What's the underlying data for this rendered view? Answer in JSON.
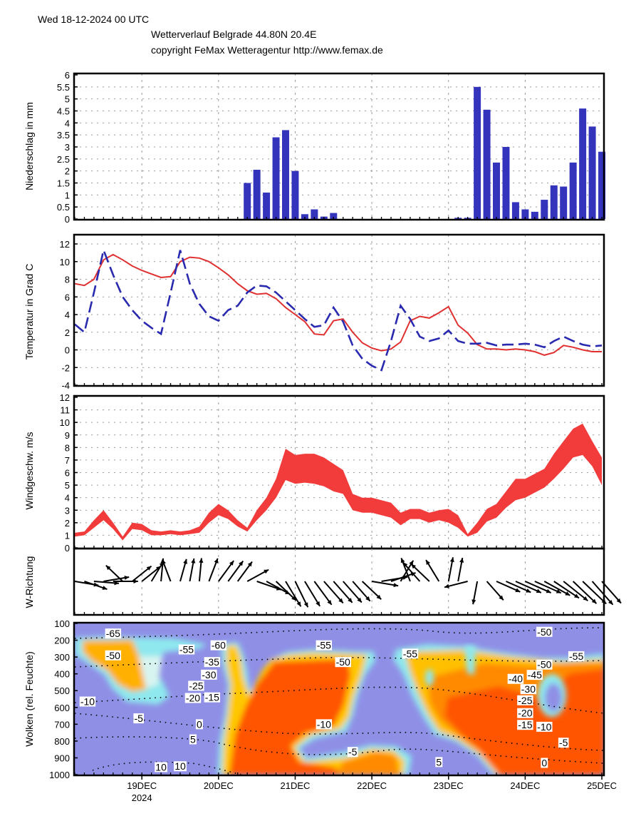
{
  "header": {
    "datetime": "Wed 18-12-2024 00 UTC",
    "title": "Wetterverlauf Belgrade  44.80N 20.4E",
    "copyright": "copyright FeMax Wetteragentur http://www.femax.de"
  },
  "x_axis": {
    "ticks": [
      {
        "time": "2024-12-19T00",
        "label": "19DEC"
      },
      {
        "time": "2024-12-20T00",
        "label": "20DEC"
      },
      {
        "time": "2024-12-21T00",
        "label": "21DEC"
      },
      {
        "time": "2024-12-22T00",
        "label": "22DEC"
      },
      {
        "time": "2024-12-23T00",
        "label": "23DEC"
      },
      {
        "time": "2024-12-24T00",
        "label": "24DEC"
      },
      {
        "time": "2024-12-25T00",
        "label": "25DEC"
      }
    ],
    "year_label": "2024",
    "range": [
      "2024-12-18T03",
      "2024-12-25T00"
    ]
  },
  "colors": {
    "precip_bar": "#3333bb",
    "temperature": "#e03030",
    "dewpoint_dashed": "#2a2ab0",
    "wind_band": "#f23c3c",
    "cloud_background": "#8f8fe6",
    "cloud_cyan": "#8ee8ee",
    "cloud_yellow": "#ffd21e",
    "cloud_orange": "#ff9a00",
    "cloud_red": "#ff5500"
  },
  "chart_data": [
    {
      "type": "bar",
      "ylabel": "Niederschlag in mm",
      "ylim": [
        0,
        6
      ],
      "yticks": [
        "0",
        "0.5",
        "1",
        "1.5",
        "2",
        "2.5",
        "3",
        "3.5",
        "4",
        "4.5",
        "5",
        "5.5",
        "6"
      ],
      "grid": true,
      "x": [
        "2024-12-20T09",
        "2024-12-20T12",
        "2024-12-20T15",
        "2024-12-20T18",
        "2024-12-20T21",
        "2024-12-21T00",
        "2024-12-21T03",
        "2024-12-21T06",
        "2024-12-21T09",
        "2024-12-21T12",
        "2024-12-23T03",
        "2024-12-23T06",
        "2024-12-23T09",
        "2024-12-23T12",
        "2024-12-23T15",
        "2024-12-23T18",
        "2024-12-23T21",
        "2024-12-24T00",
        "2024-12-24T03",
        "2024-12-24T06",
        "2024-12-24T09",
        "2024-12-24T12",
        "2024-12-24T15",
        "2024-12-24T18",
        "2024-12-24T21",
        "2024-12-25T00"
      ],
      "values": [
        1.5,
        2.05,
        1.1,
        3.4,
        3.7,
        2.0,
        0.2,
        0.4,
        0.1,
        0.25,
        0.05,
        0.05,
        5.5,
        4.55,
        2.35,
        3.0,
        0.7,
        0.4,
        0.3,
        0.8,
        1.4,
        1.35,
        2.35,
        4.6,
        3.85,
        2.8
      ]
    },
    {
      "type": "line",
      "ylabel": "Temperatur in Grad C",
      "ylim": [
        -4,
        12
      ],
      "yticks": [
        "-4",
        "-2",
        "0",
        "2",
        "4",
        "6",
        "8",
        "10",
        "12"
      ],
      "grid": true,
      "x": [
        "2024-12-18T03",
        "2024-12-18T06",
        "2024-12-18T09",
        "2024-12-18T12",
        "2024-12-18T15",
        "2024-12-18T18",
        "2024-12-18T21",
        "2024-12-19T00",
        "2024-12-19T03",
        "2024-12-19T06",
        "2024-12-19T09",
        "2024-12-19T12",
        "2024-12-19T15",
        "2024-12-19T18",
        "2024-12-19T21",
        "2024-12-20T00",
        "2024-12-20T03",
        "2024-12-20T06",
        "2024-12-20T09",
        "2024-12-20T12",
        "2024-12-20T15",
        "2024-12-20T18",
        "2024-12-20T21",
        "2024-12-21T00",
        "2024-12-21T03",
        "2024-12-21T06",
        "2024-12-21T09",
        "2024-12-21T12",
        "2024-12-21T15",
        "2024-12-21T18",
        "2024-12-21T21",
        "2024-12-22T00",
        "2024-12-22T03",
        "2024-12-22T06",
        "2024-12-22T09",
        "2024-12-22T12",
        "2024-12-22T15",
        "2024-12-22T18",
        "2024-12-22T21",
        "2024-12-23T00",
        "2024-12-23T03",
        "2024-12-23T06",
        "2024-12-23T09",
        "2024-12-23T12",
        "2024-12-23T15",
        "2024-12-23T18",
        "2024-12-23T21",
        "2024-12-24T00",
        "2024-12-24T03",
        "2024-12-24T06",
        "2024-12-24T09",
        "2024-12-24T12",
        "2024-12-24T15",
        "2024-12-24T18",
        "2024-12-24T21",
        "2024-12-25T00"
      ],
      "series": [
        {
          "style": "solid",
          "color": "#e03030",
          "values": [
            7.5,
            7.3,
            8.0,
            10.2,
            10.8,
            10.2,
            9.5,
            9.0,
            8.6,
            8.2,
            8.3,
            10.0,
            10.5,
            10.4,
            10.0,
            9.3,
            8.5,
            7.5,
            6.7,
            6.3,
            6.4,
            5.8,
            4.8,
            4.0,
            3.2,
            1.8,
            1.7,
            3.3,
            3.5,
            2.0,
            0.8,
            0.2,
            -0.1,
            0.1,
            0.9,
            3.3,
            3.8,
            3.6,
            4.2,
            4.9,
            2.8,
            1.9,
            0.6,
            0.1,
            0.1,
            0.0,
            0.1,
            0.0,
            -0.2,
            -0.6,
            -0.3,
            0.5,
            0.3,
            0.0,
            -0.2,
            -0.2
          ]
        },
        {
          "style": "dashed",
          "color": "#2a2ab0",
          "values": [
            2.9,
            2.0,
            6.5,
            11.3,
            8.5,
            6.0,
            4.5,
            3.3,
            2.5,
            1.8,
            6.5,
            11.3,
            7.5,
            5.2,
            3.8,
            3.3,
            4.5,
            5.0,
            6.5,
            7.3,
            7.2,
            6.5,
            5.5,
            4.5,
            3.5,
            2.6,
            2.8,
            4.8,
            3.2,
            0.5,
            -1.0,
            -1.8,
            -2.3,
            1.0,
            5.0,
            3.5,
            1.5,
            1.0,
            1.3,
            2.2,
            1.0,
            0.7,
            0.7,
            0.8,
            0.5,
            0.6,
            0.6,
            0.7,
            0.6,
            0.3,
            1.0,
            1.5,
            1.0,
            0.6,
            0.4,
            0.5
          ]
        }
      ]
    },
    {
      "type": "area",
      "ylabel": "Windgeschw. m/s",
      "ylim": [
        0,
        12
      ],
      "yticks": [
        "0",
        "1",
        "2",
        "3",
        "4",
        "5",
        "6",
        "7",
        "8",
        "9",
        "10",
        "11",
        "12"
      ],
      "grid": true,
      "band_upper": [
        1.2,
        1.3,
        2.2,
        3.0,
        2.0,
        0.9,
        2.0,
        1.9,
        1.4,
        1.3,
        1.4,
        1.3,
        1.4,
        1.7,
        2.8,
        3.5,
        3.0,
        2.2,
        1.6,
        3.0,
        4.0,
        5.5,
        7.9,
        7.4,
        7.5,
        7.5,
        7.2,
        6.7,
        6.2,
        4.3,
        4.0,
        4.0,
        3.8,
        3.6,
        2.8,
        3.1,
        3.1,
        2.8,
        3.0,
        3.1,
        2.6,
        1.1,
        2.0,
        3.1,
        3.5,
        4.5,
        5.5,
        5.5,
        5.9,
        6.3,
        7.5,
        8.5,
        9.5,
        9.9,
        8.5,
        7.2
      ],
      "band_lower": [
        0.9,
        1.0,
        1.6,
        2.2,
        1.5,
        0.6,
        1.5,
        1.4,
        1.0,
        1.0,
        1.1,
        1.0,
        1.1,
        1.2,
        2.0,
        2.6,
        2.3,
        1.7,
        1.3,
        2.2,
        3.0,
        4.0,
        5.4,
        5.1,
        5.2,
        5.1,
        4.9,
        4.5,
        4.3,
        3.0,
        2.8,
        2.8,
        2.6,
        2.4,
        1.8,
        2.3,
        2.3,
        2.0,
        2.2,
        2.0,
        1.6,
        0.9,
        1.2,
        2.1,
        2.4,
        3.2,
        3.8,
        4.0,
        4.4,
        4.8,
        5.5,
        6.3,
        7.2,
        7.4,
        6.5,
        5.0
      ]
    },
    {
      "type": "scatter",
      "ylabel": "W-Richtung",
      "wind_from_deg": [
        280,
        290,
        275,
        260,
        270,
        135,
        230,
        230,
        210,
        185,
        160,
        195,
        190,
        185,
        200,
        215,
        215,
        215,
        240,
        290,
        300,
        315,
        330,
        335,
        330,
        325,
        320,
        320,
        320,
        320,
        315,
        280,
        260,
        250,
        210,
        160,
        140,
        135,
        150,
        190,
        190,
        75,
        10,
        320,
        295,
        295,
        295,
        295,
        295,
        300,
        305,
        310,
        315,
        315,
        320,
        320
      ]
    },
    {
      "type": "heatmap",
      "ylabel": "Wolken (rel. Feuchte)",
      "ylim": [
        1000,
        100
      ],
      "yticks": [
        "100",
        "200",
        "300",
        "400",
        "500",
        "600",
        "700",
        "800",
        "900",
        "1000"
      ],
      "contour_labels": [
        {
          "text": "-65",
          "time": "2024-12-18T15",
          "p": 160
        },
        {
          "text": "-50",
          "time": "2024-12-18T15",
          "p": 290
        },
        {
          "text": "-55",
          "time": "2024-12-19T14",
          "p": 255
        },
        {
          "text": "-60",
          "time": "2024-12-20T00",
          "p": 230
        },
        {
          "text": "-35",
          "time": "2024-12-19T22",
          "p": 330
        },
        {
          "text": "-30",
          "time": "2024-12-19T21",
          "p": 405
        },
        {
          "text": "-25",
          "time": "2024-12-19T17",
          "p": 450
        },
        {
          "text": "-20",
          "time": "2024-12-19T16",
          "p": 480
        },
        {
          "text": "-15",
          "time": "2024-12-19T22",
          "p": 540
        },
        {
          "text": "-10",
          "time": "2024-12-18T07",
          "p": 565
        },
        {
          "text": "-5",
          "time": "2024-12-18T23",
          "p": 665
        },
        {
          "text": "0",
          "time": "2024-12-19T18",
          "p": 700
        },
        {
          "text": "5",
          "time": "2024-12-19T16",
          "p": 790
        },
        {
          "text": "10",
          "time": "2024-12-19T06",
          "p": 955
        },
        {
          "text": "10",
          "time": "2024-12-19T12",
          "p": 950
        },
        {
          "text": "-55",
          "time": "2024-12-21T09",
          "p": 230
        },
        {
          "text": "-50",
          "time": "2024-12-21T15",
          "p": 330
        },
        {
          "text": "-10",
          "time": "2024-12-21T09",
          "p": 700
        },
        {
          "text": "-5",
          "time": "2024-12-21T18",
          "p": 865
        },
        {
          "text": "-55",
          "time": "2024-12-22T12",
          "p": 280
        },
        {
          "text": "5",
          "time": "2024-12-22T21",
          "p": 925
        },
        {
          "text": "-50",
          "time": "2024-12-24T06",
          "p": 150
        },
        {
          "text": "-55",
          "time": "2024-12-24T16",
          "p": 295
        },
        {
          "text": "-50",
          "time": "2024-12-24T06",
          "p": 345
        },
        {
          "text": "-45",
          "time": "2024-12-24T03",
          "p": 385
        },
        {
          "text": "-40",
          "time": "2024-12-23T21",
          "p": 430
        },
        {
          "text": "-30",
          "time": "2024-12-24T01",
          "p": 470
        },
        {
          "text": "-25",
          "time": "2024-12-24T00",
          "p": 515
        },
        {
          "text": "-20",
          "time": "2024-12-24T00",
          "p": 570
        },
        {
          "text": "-15",
          "time": "2024-12-24T00",
          "p": 640
        },
        {
          "text": "-10",
          "time": "2024-12-24T06",
          "p": 715
        },
        {
          "text": "-5",
          "time": "2024-12-24T12",
          "p": 810
        },
        {
          "text": "0",
          "time": "2024-12-24T06",
          "p": 930
        }
      ]
    }
  ]
}
